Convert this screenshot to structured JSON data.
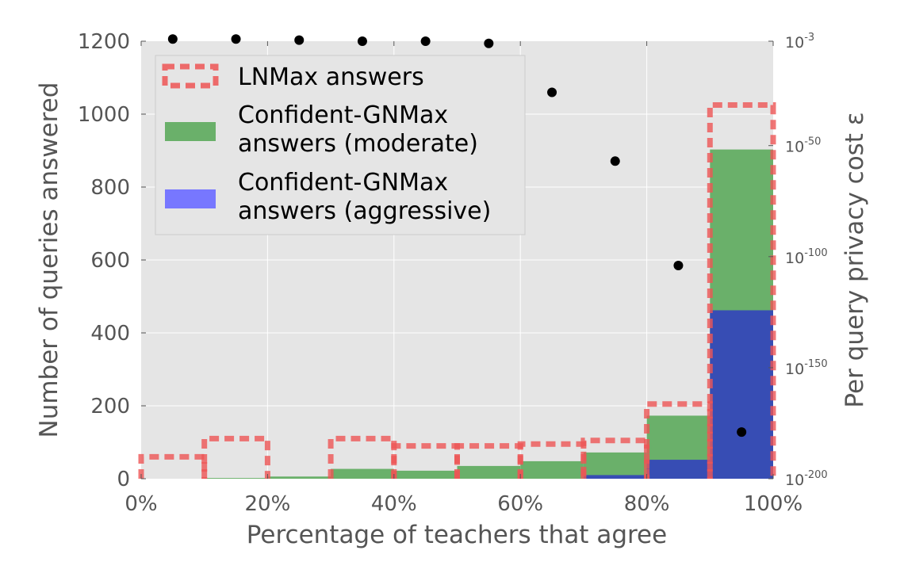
{
  "chart_data": {
    "type": "bar",
    "xlabel": "Percentage of teachers that agree",
    "ylabel": "Number of queries answered",
    "y2label": "Per query privacy cost ε",
    "xlim": [
      0,
      100
    ],
    "ylim": [
      0,
      1200
    ],
    "y2_scale": "log",
    "y2_exponent_range": [
      -200,
      -3
    ],
    "grid": true,
    "legend_position": "top-left",
    "bins": [
      [
        0,
        10
      ],
      [
        10,
        20
      ],
      [
        20,
        30
      ],
      [
        30,
        40
      ],
      [
        40,
        50
      ],
      [
        50,
        60
      ],
      [
        60,
        70
      ],
      [
        70,
        80
      ],
      [
        80,
        90
      ],
      [
        90,
        100
      ]
    ],
    "x_ticks": [
      "0%",
      "20%",
      "40%",
      "60%",
      "80%",
      "100%"
    ],
    "x_tick_values": [
      0,
      20,
      40,
      60,
      80,
      100
    ],
    "y_ticks": [
      "0",
      "200",
      "400",
      "600",
      "800",
      "1000",
      "1200"
    ],
    "y_tick_values": [
      0,
      200,
      400,
      600,
      800,
      1000,
      1200
    ],
    "y2_ticks": [
      {
        "base": "10",
        "exp": "-3",
        "value": -3
      },
      {
        "base": "10",
        "exp": "-50",
        "value": -50
      },
      {
        "base": "10",
        "exp": "-100",
        "value": -100
      },
      {
        "base": "10",
        "exp": "-150",
        "value": -150
      },
      {
        "base": "10",
        "exp": "-200",
        "value": -200
      }
    ],
    "series": [
      {
        "name": "LNMax answers",
        "style": "dashed-outline",
        "color": "#ee5555",
        "values": [
          60,
          110,
          0,
          110,
          90,
          90,
          95,
          105,
          205,
          1025
        ]
      },
      {
        "name": "Confident-GNMax answers (moderate)",
        "color": "#6ab06a",
        "values": [
          0,
          2,
          6,
          27,
          22,
          35,
          48,
          72,
          173,
          903
        ]
      },
      {
        "name": "Confident-GNMax answers (aggressive)",
        "color": "#3344bb",
        "values": [
          0,
          0,
          0,
          0,
          0,
          0,
          0,
          10,
          52,
          462
        ]
      }
    ],
    "privacy_cost_points": {
      "x": [
        5,
        15,
        25,
        35,
        45,
        55,
        65,
        75,
        85,
        95
      ],
      "log10_eps": [
        -2,
        -2,
        -2.5,
        -3,
        -3,
        -4,
        -26,
        -57,
        -104,
        -179
      ]
    }
  },
  "legend": {
    "items": [
      {
        "line1": "LNMax answers",
        "line2": ""
      },
      {
        "line1": "Confident-GNMax",
        "line2": "answers (moderate)"
      },
      {
        "line1": "Confident-GNMax",
        "line2": "answers (aggressive)"
      }
    ]
  },
  "colors": {
    "plot_bg": "#e5e5e5",
    "grid": "#ffffff",
    "lnmax": "#ee5555",
    "moderate": "#6ab06a",
    "aggressive": "#3344bb",
    "aggressive_legend": "#7777ff",
    "points": "#000000"
  }
}
